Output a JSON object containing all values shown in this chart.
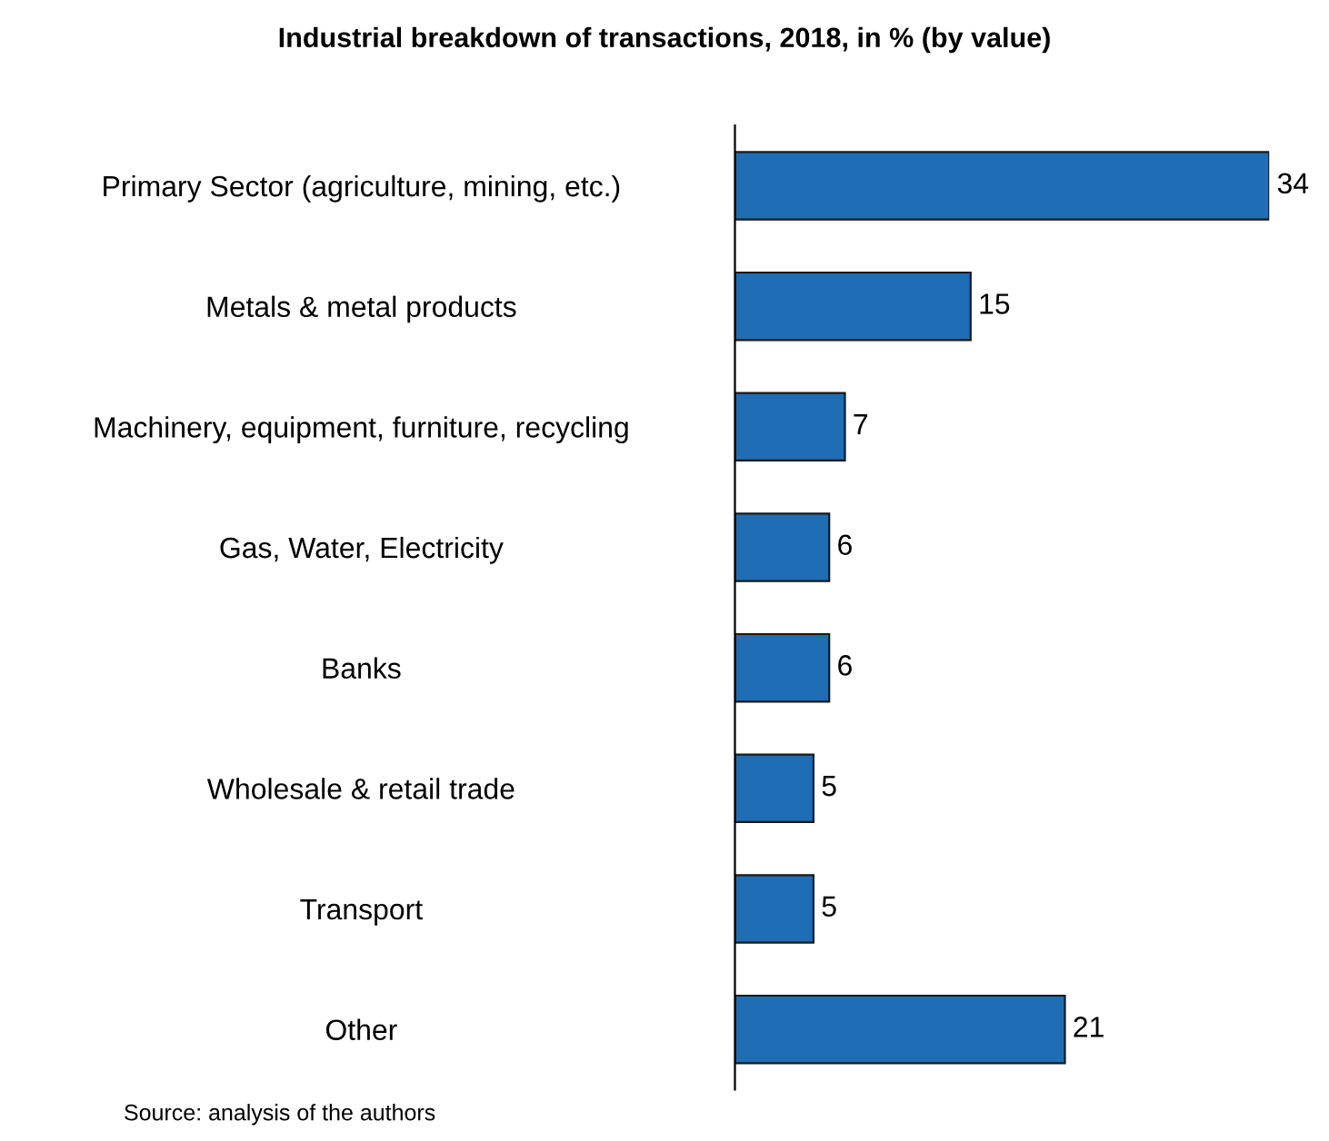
{
  "chart_data": {
    "type": "bar",
    "orientation": "horizontal",
    "title": "Industrial breakdown of transactions, 2018, in % (by value)",
    "categories": [
      "Primary Sector (agriculture, mining, etc.)",
      "Metals & metal products",
      "Machinery, equipment, furniture, recycling",
      "Gas, Water, Electricity",
      "Banks",
      "Wholesale & retail trade",
      "Transport",
      "Other"
    ],
    "values": [
      34,
      15,
      7,
      6,
      6,
      5,
      5,
      21
    ],
    "color": "#1f6db5",
    "data_labels": true,
    "grid": false,
    "legend": false,
    "annotations": [
      "Source: analysis of the authors"
    ]
  }
}
